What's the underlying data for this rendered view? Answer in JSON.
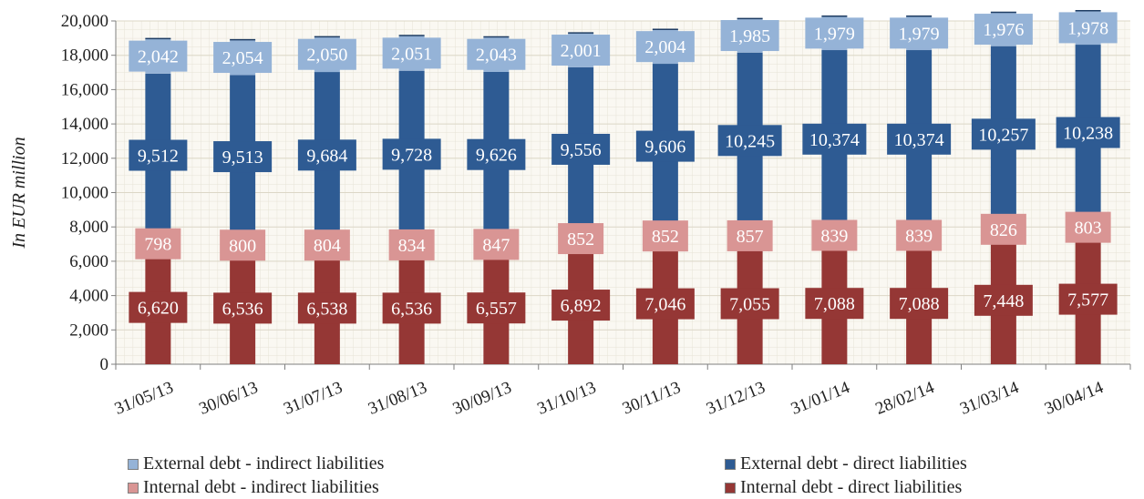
{
  "chart_data": {
    "type": "bar",
    "stacked": true,
    "title": "",
    "xlabel": "",
    "ylabel": "In EUR million",
    "ylim": [
      0,
      20000
    ],
    "yticks": [
      0,
      2000,
      4000,
      6000,
      8000,
      10000,
      12000,
      14000,
      16000,
      18000,
      20000
    ],
    "ytick_labels": [
      "0",
      "2,000",
      "4,000",
      "6,000",
      "8,000",
      "10,000",
      "12,000",
      "14,000",
      "16,000",
      "18,000",
      "20,000"
    ],
    "grid": true,
    "legend_position": "bottom",
    "categories": [
      "31/05/13",
      "30/06/13",
      "31/07/13",
      "31/08/13",
      "30/09/13",
      "31/10/13",
      "30/11/13",
      "31/12/13",
      "31/01/14",
      "28/02/14",
      "31/03/14",
      "30/04/14"
    ],
    "series": [
      {
        "name": "Internal debt - direct liabilities",
        "color": "#953735",
        "values": [
          6620,
          6536,
          6538,
          6536,
          6557,
          6892,
          7046,
          7055,
          7088,
          7088,
          7448,
          7577
        ],
        "labels": [
          "6,620",
          "6,536",
          "6,538",
          "6,536",
          "6,557",
          "6,892",
          "7,046",
          "7,055",
          "7,088",
          "7,088",
          "7,448",
          "7,577"
        ]
      },
      {
        "name": "Internal debt - indirect liabilities",
        "color": "#d99594",
        "values": [
          798,
          800,
          804,
          834,
          847,
          852,
          852,
          857,
          839,
          839,
          826,
          803
        ],
        "labels": [
          "798",
          "800",
          "804",
          "834",
          "847",
          "852",
          "852",
          "857",
          "839",
          "839",
          "826",
          "803"
        ]
      },
      {
        "name": "External debt - direct liabilities",
        "color": "#2e5b93",
        "values": [
          9512,
          9513,
          9684,
          9728,
          9626,
          9556,
          9606,
          10245,
          10374,
          10374,
          10257,
          10238
        ],
        "labels": [
          "9,512",
          "9,513",
          "9,684",
          "9,728",
          "9,626",
          "9,556",
          "9,606",
          "10,245",
          "10,374",
          "10,374",
          "10,257",
          "10,238"
        ]
      },
      {
        "name": "External debt - indirect liabilities",
        "color": "#95b3d7",
        "values": [
          2042,
          2054,
          2050,
          2051,
          2043,
          2001,
          2004,
          1985,
          1979,
          1979,
          1976,
          1978
        ],
        "labels": [
          "2,042",
          "2,054",
          "2,050",
          "2,051",
          "2,043",
          "2,001",
          "2,004",
          "1,985",
          "1,979",
          "1,979",
          "1,976",
          "1,978"
        ]
      }
    ],
    "legend": [
      {
        "label": "External debt - indirect liabilities",
        "color": "#95b3d7"
      },
      {
        "label": "External debt - direct liabilities",
        "color": "#2e5b93"
      },
      {
        "label": "Internal debt - indirect liabilities",
        "color": "#d99594"
      },
      {
        "label": "Internal debt - direct liabilities",
        "color": "#953735"
      }
    ]
  }
}
